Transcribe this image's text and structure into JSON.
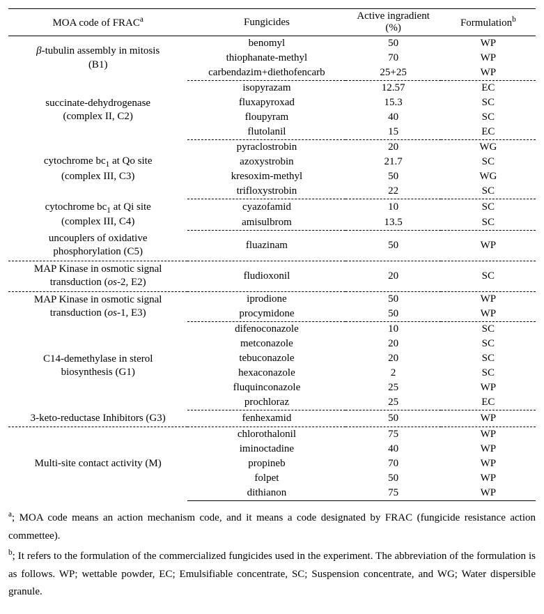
{
  "headers": {
    "moa": "MOA code of FRAC",
    "moa_sup": "a",
    "fungicides": "Fungicides",
    "active": "Active ingradient (%)",
    "formulation": "Formulation",
    "formulation_sup": "b"
  },
  "groups": [
    {
      "moa_html": "<span class='ital'>β</span>-tubulin assembly in mitosis<br>(B1)",
      "rows": [
        {
          "fungicide": "benomyl",
          "active": "50",
          "formulation": "WP"
        },
        {
          "fungicide": "thiophanate-methyl",
          "active": "70",
          "formulation": "WP"
        },
        {
          "fungicide": "carbendazim+diethofencarb",
          "active": "25+25",
          "formulation": "WP"
        }
      ]
    },
    {
      "moa_html": "succinate-dehydrogenase<br>(complex II, C2)",
      "rows": [
        {
          "fungicide": "isopyrazam",
          "active": "12.57",
          "formulation": "EC"
        },
        {
          "fungicide": "fluxapyroxad",
          "active": "15.3",
          "formulation": "SC"
        },
        {
          "fungicide": "floupyram",
          "active": "40",
          "formulation": "SC"
        },
        {
          "fungicide": "flutolanil",
          "active": "15",
          "formulation": "EC"
        }
      ]
    },
    {
      "moa_html": "cytochrome bc<span class='sub'>1</span> at Qo site<br>(complex III, C3)",
      "rows": [
        {
          "fungicide": "pyraclostrobin",
          "active": "20",
          "formulation": "WG"
        },
        {
          "fungicide": "azoxystrobin",
          "active": "21.7",
          "formulation": "SC"
        },
        {
          "fungicide": "kresoxim-methyl",
          "active": "50",
          "formulation": "WG"
        },
        {
          "fungicide": "trifloxystrobin",
          "active": "22",
          "formulation": "SC"
        }
      ]
    },
    {
      "moa_html": "cytochrome bc<span class='sub'>1</span> at Qi site<br>(complex III, C4)",
      "rows": [
        {
          "fungicide": "cyazofamid",
          "active": "10",
          "formulation": "SC"
        },
        {
          "fungicide": "amisulbrom",
          "active": "13.5",
          "formulation": "SC"
        }
      ]
    },
    {
      "moa_html": "uncouplers of oxidative<br>phosphorylation (C5)",
      "rows": [
        {
          "fungicide": "fluazinam",
          "active": "50",
          "formulation": "WP"
        }
      ]
    },
    {
      "moa_html": "MAP Kinase in osmotic signal<br>transduction (<span class='ital'>os</span>-2, E2)",
      "rows": [
        {
          "fungicide": "fludioxonil",
          "active": "20",
          "formulation": "SC"
        }
      ]
    },
    {
      "moa_html": "MAP Kinase in osmotic signal<br>transduction (<span class='ital'>os</span>-1, E3)",
      "rows": [
        {
          "fungicide": "iprodione",
          "active": "50",
          "formulation": "WP"
        },
        {
          "fungicide": "procymidone",
          "active": "50",
          "formulation": "WP"
        }
      ]
    },
    {
      "moa_html": "C14-demethylase in sterol<br>biosynthesis (G1)",
      "rows": [
        {
          "fungicide": "difenoconazole",
          "active": "10",
          "formulation": "SC"
        },
        {
          "fungicide": "metconazole",
          "active": "20",
          "formulation": "SC"
        },
        {
          "fungicide": "tebuconazole",
          "active": "20",
          "formulation": "SC"
        },
        {
          "fungicide": "hexaconazole",
          "active": "2",
          "formulation": "SC"
        },
        {
          "fungicide": "fluquinconazole",
          "active": "25",
          "formulation": "WP"
        },
        {
          "fungicide": "prochloraz",
          "active": "25",
          "formulation": "EC"
        }
      ]
    },
    {
      "moa_html": "3-keto-reductase Inhibitors (G3)",
      "rows": [
        {
          "fungicide": "fenhexamid",
          "active": "50",
          "formulation": "WP"
        }
      ]
    },
    {
      "moa_html": "Multi-site contact activity (M)",
      "rows": [
        {
          "fungicide": "chlorothalonil",
          "active": "75",
          "formulation": "WP"
        },
        {
          "fungicide": "iminoctadine",
          "active": "40",
          "formulation": "WP"
        },
        {
          "fungicide": "propineb",
          "active": "70",
          "formulation": "WP"
        },
        {
          "fungicide": "folpet",
          "active": "50",
          "formulation": "WP"
        },
        {
          "fungicide": "dithianon",
          "active": "75",
          "formulation": "WP"
        }
      ]
    }
  ],
  "footnotes": {
    "a": "; MOA code means an action mechanism code, and it means a code designated by FRAC (fungicide resistance action commettee).",
    "b": "; It refers to the formulation of the commercialized fungicides used in the experiment. The abbreviation of the formulation is as follows. WP; wettable powder, EC; Emulsifiable concentrate, SC; Suspension concentrate, and WG; Water dispersible granule."
  }
}
